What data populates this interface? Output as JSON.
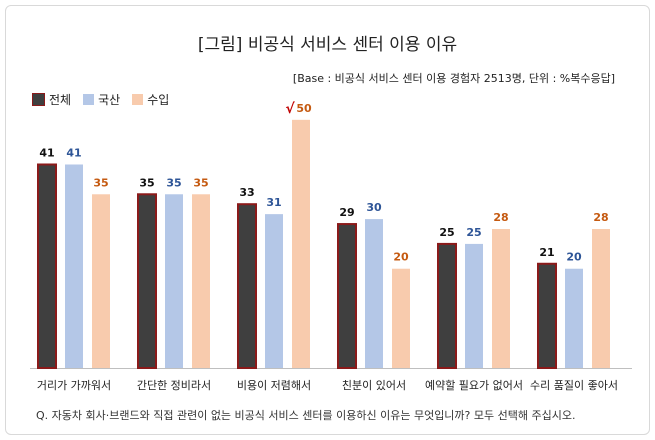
{
  "title": "[그림] 비공식 서비스 센터 이용 이유",
  "base_note": "[Base : 비공식 서비스 센터 이용 경험자 2513명, 단위 : %복수응답]",
  "question": "Q. 자동차 회사·브랜드와 직접 관련이 없는 비공식 서비스 센터를 이용하신 이유는 무엇입니까? 모두 선택해 주십시오.",
  "colors": {
    "total": "#3f3f3f",
    "total_border": "#8b1a1a",
    "domestic": "#b4c7e7",
    "import": "#f8cbad",
    "label_total": "#111111",
    "label_domestic": "#2e5597",
    "label_import": "#c55a11",
    "highlight": "#c00000"
  },
  "chart_data": {
    "type": "bar",
    "title": "[그림] 비공식 서비스 센터 이용 이유",
    "categories": [
      "거리가 가까워서",
      "간단한 정비라서",
      "비용이 저렴해서",
      "친분이 있어서",
      "예약할 필요가 없어서",
      "수리 품질이 좋아서"
    ],
    "series": [
      {
        "name": "전체",
        "values": [
          41,
          35,
          33,
          29,
          25,
          21
        ]
      },
      {
        "name": "국산",
        "values": [
          41,
          35,
          31,
          30,
          25,
          20
        ]
      },
      {
        "name": "수입",
        "values": [
          35,
          35,
          50,
          20,
          28,
          28
        ]
      }
    ],
    "ylim": [
      0,
      55
    ],
    "highlight": {
      "series": "수입",
      "category": "비용이 저렴해서",
      "mark": "√"
    },
    "legend": "top-left",
    "grid": false
  }
}
